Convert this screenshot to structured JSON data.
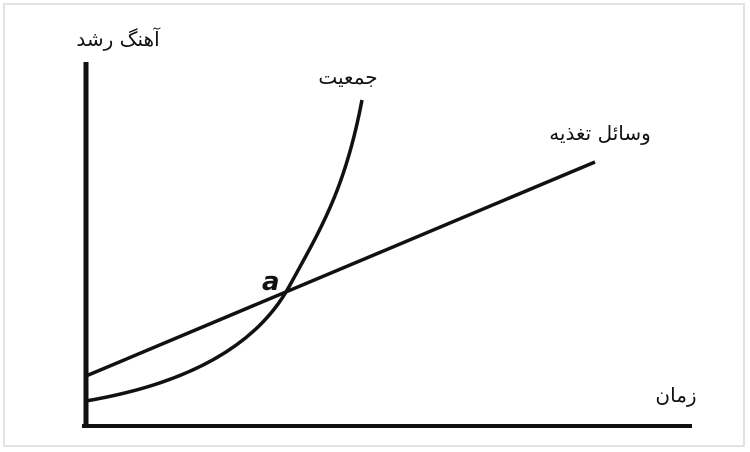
{
  "axes": {
    "y_label": "آهنگ رشد",
    "x_label": "زمان"
  },
  "curves": [
    {
      "label": "جمعیت"
    },
    {
      "label": "وسائل تغذیه"
    }
  ],
  "intersection": {
    "label": "a"
  }
}
